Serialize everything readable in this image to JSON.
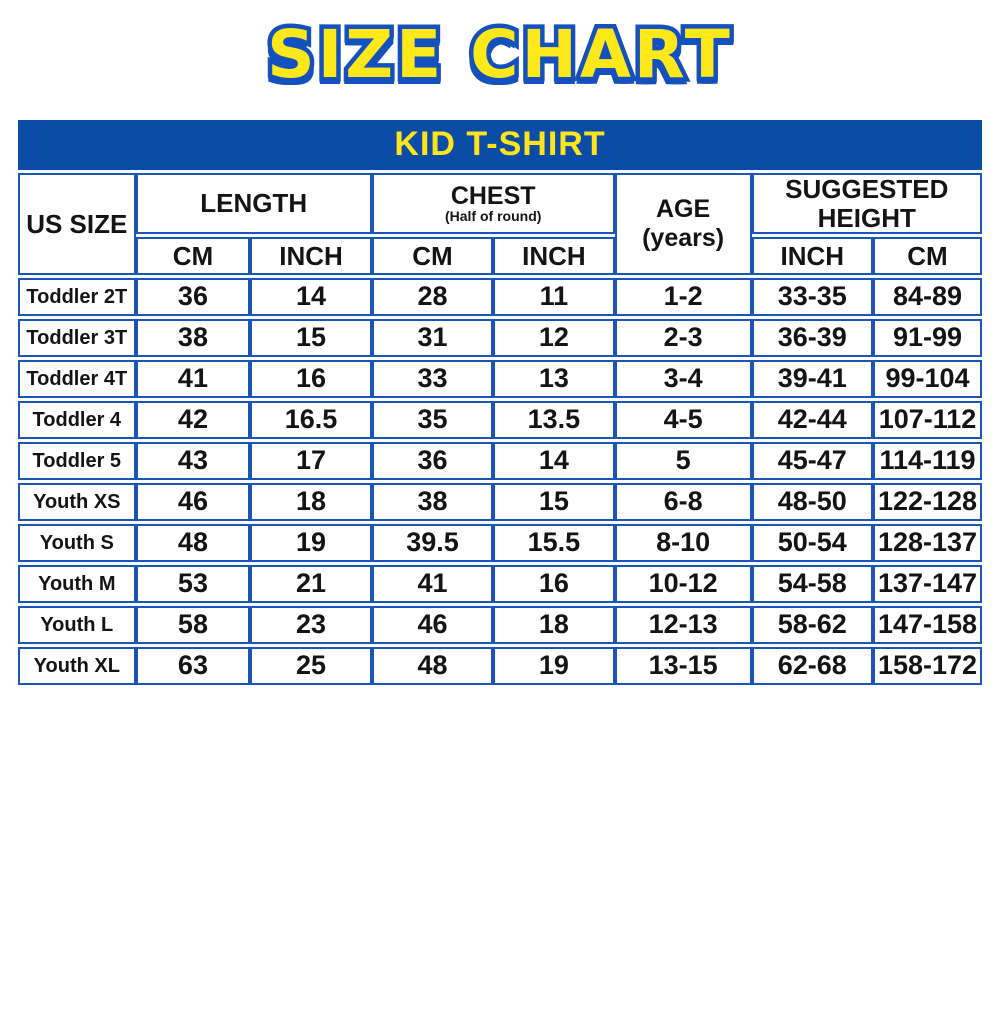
{
  "page_title": "SIZE CHART",
  "banner": "KID T-SHIRT",
  "header": {
    "us_size": "US SIZE",
    "length": "LENGTH",
    "chest": "CHEST",
    "chest_note": "(Half of round)",
    "age_line1": "AGE",
    "age_line2": "(years)",
    "suggested_height": "SUGGESTED HEIGHT",
    "units": [
      "CM",
      "INCH",
      "CM",
      "INCH",
      "INCH",
      "CM"
    ]
  },
  "colors": {
    "header_blue": "#0B4DA6",
    "border_blue": "#1A55B8",
    "accent_yellow": "#FFE41C",
    "title_yellow": "#FFE81A",
    "title_outline_blue": "#1551BE"
  },
  "chart_data": {
    "type": "table",
    "title": "SIZE CHART",
    "subtitle": "KID T-SHIRT",
    "columns": [
      "US SIZE",
      "LENGTH CM",
      "LENGTH INCH",
      "CHEST (Half of round) CM",
      "CHEST (Half of round) INCH",
      "AGE (years)",
      "SUGGESTED HEIGHT INCH",
      "SUGGESTED HEIGHT CM"
    ],
    "rows": [
      [
        "Toddler 2T",
        "36",
        "14",
        "28",
        "11",
        "1-2",
        "33-35",
        "84-89"
      ],
      [
        "Toddler 3T",
        "38",
        "15",
        "31",
        "12",
        "2-3",
        "36-39",
        "91-99"
      ],
      [
        "Toddler 4T",
        "41",
        "16",
        "33",
        "13",
        "3-4",
        "39-41",
        "99-104"
      ],
      [
        "Toddler 4",
        "42",
        "16.5",
        "35",
        "13.5",
        "4-5",
        "42-44",
        "107-112"
      ],
      [
        "Toddler 5",
        "43",
        "17",
        "36",
        "14",
        "5",
        "45-47",
        "114-119"
      ],
      [
        "Youth XS",
        "46",
        "18",
        "38",
        "15",
        "6-8",
        "48-50",
        "122-128"
      ],
      [
        "Youth S",
        "48",
        "19",
        "39.5",
        "15.5",
        "8-10",
        "50-54",
        "128-137"
      ],
      [
        "Youth M",
        "53",
        "21",
        "41",
        "16",
        "10-12",
        "54-58",
        "137-147"
      ],
      [
        "Youth L",
        "58",
        "23",
        "46",
        "18",
        "12-13",
        "58-62",
        "147-158"
      ],
      [
        "Youth XL",
        "63",
        "25",
        "48",
        "19",
        "13-15",
        "62-68",
        "158-172"
      ]
    ]
  }
}
